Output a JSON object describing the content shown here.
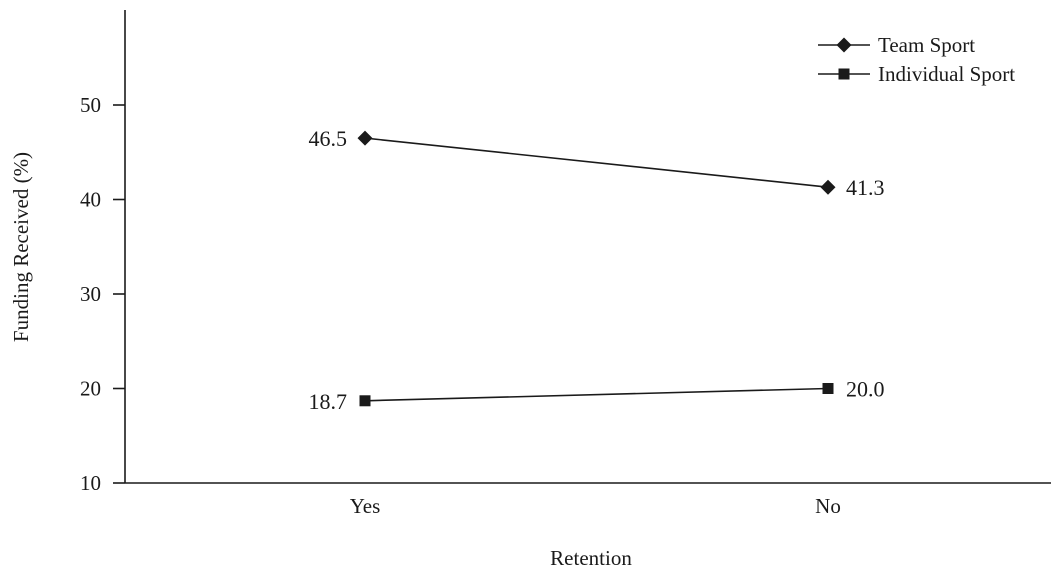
{
  "chart_data": {
    "type": "line",
    "categories": [
      "Yes",
      "No"
    ],
    "series": [
      {
        "name": "Team Sport",
        "marker": "diamond",
        "values": [
          46.5,
          41.3
        ],
        "labels": [
          "46.5",
          "41.3"
        ]
      },
      {
        "name": "Individual Sport",
        "marker": "square",
        "values": [
          18.7,
          20.0
        ],
        "labels": [
          "18.7",
          "20.0"
        ]
      }
    ],
    "xlabel": "Retention",
    "ylabel": "Funding Received (%)",
    "ylim": [
      10,
      60
    ],
    "yticks": [
      10,
      20,
      30,
      40,
      50
    ],
    "ytick_labels": [
      "10",
      "20",
      "30",
      "40",
      "50"
    ],
    "grid": false,
    "legend_position": "top-right",
    "color": "#1a1a1a"
  }
}
